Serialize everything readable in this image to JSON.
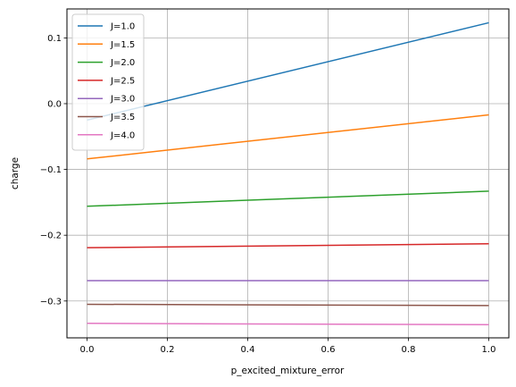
{
  "chart_data": {
    "type": "line",
    "title": "",
    "xlabel": "p_excited_mixture_error",
    "ylabel": "charge",
    "xlim": [
      -0.05,
      1.05
    ],
    "ylim": [
      -0.356,
      0.144
    ],
    "xticks": [
      0.0,
      0.2,
      0.4,
      0.6,
      0.8,
      1.0
    ],
    "xtick_labels": [
      "0.0",
      "0.2",
      "0.4",
      "0.6",
      "0.8",
      "1.0"
    ],
    "yticks": [
      -0.3,
      -0.2,
      -0.1,
      0.0,
      0.1
    ],
    "ytick_labels": [
      "−0.3",
      "−0.2",
      "−0.1",
      "0.0",
      "0.1"
    ],
    "grid": true,
    "legend_position": "upper-left",
    "series": [
      {
        "name": "J=1.0",
        "color": "#1f77b4",
        "x": [
          0.0,
          1.0
        ],
        "y": [
          -0.025,
          0.123
        ]
      },
      {
        "name": "J=1.5",
        "color": "#ff7f0e",
        "x": [
          0.0,
          1.0
        ],
        "y": [
          -0.084,
          -0.017
        ]
      },
      {
        "name": "J=2.0",
        "color": "#2ca02c",
        "x": [
          0.0,
          1.0
        ],
        "y": [
          -0.156,
          -0.133
        ]
      },
      {
        "name": "J=2.5",
        "color": "#d62728",
        "x": [
          0.0,
          1.0
        ],
        "y": [
          -0.219,
          -0.213
        ]
      },
      {
        "name": "J=3.0",
        "color": "#9467bd",
        "x": [
          0.0,
          1.0
        ],
        "y": [
          -0.269,
          -0.269
        ]
      },
      {
        "name": "J=3.5",
        "color": "#8c564b",
        "x": [
          0.0,
          1.0
        ],
        "y": [
          -0.305,
          -0.307
        ]
      },
      {
        "name": "J=4.0",
        "color": "#e377c2",
        "x": [
          0.0,
          1.0
        ],
        "y": [
          -0.334,
          -0.336
        ]
      }
    ]
  }
}
